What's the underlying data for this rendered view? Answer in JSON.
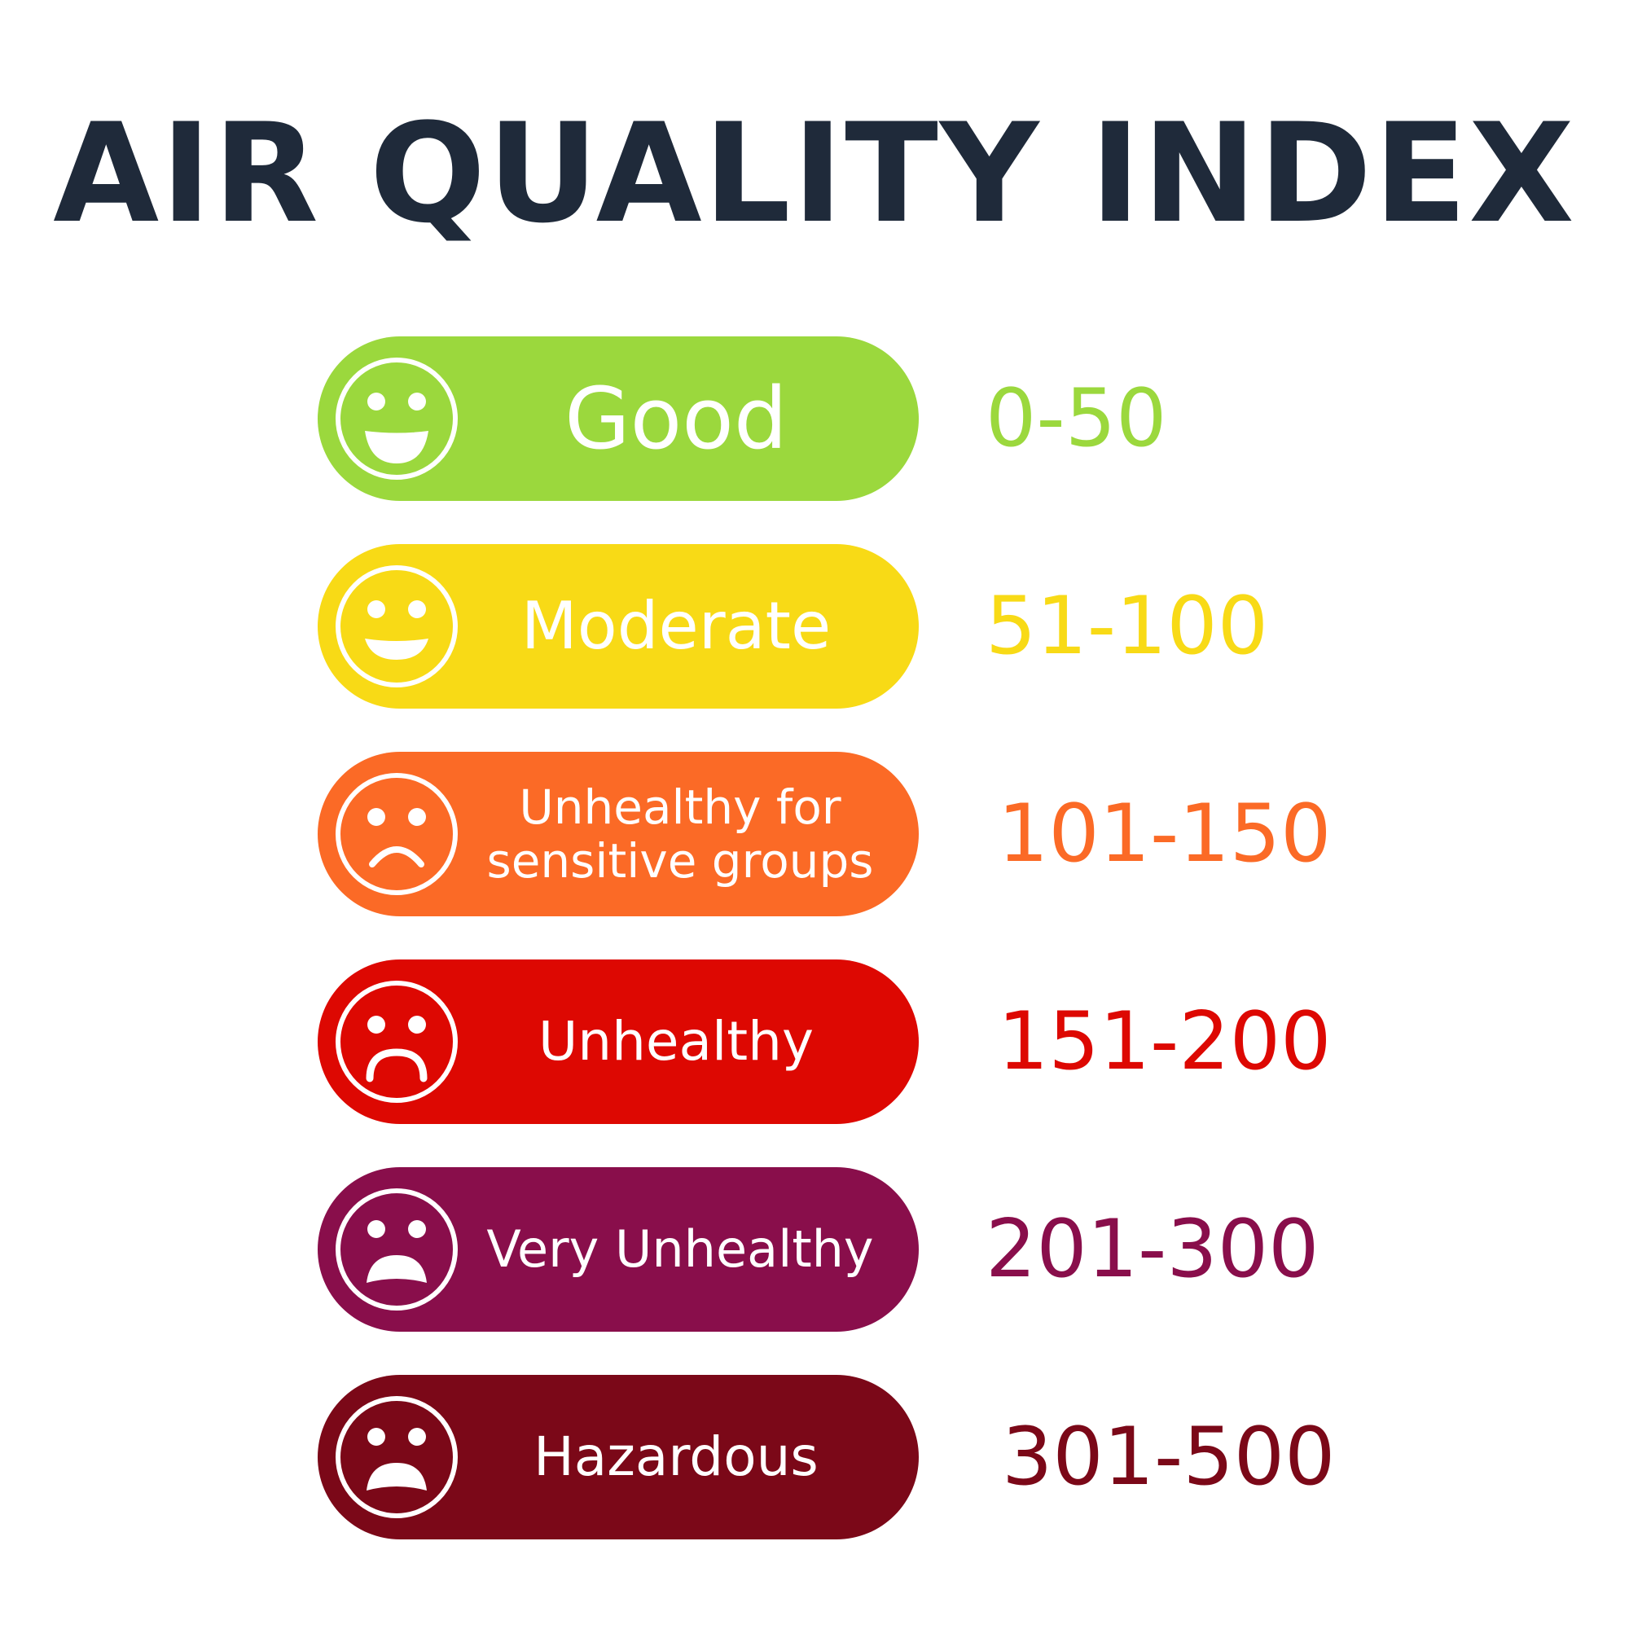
{
  "title": "AIR QUALITY INDEX",
  "levels": [
    {
      "label": "Good",
      "range": "0-50",
      "color": "#9bd83d",
      "face": "big-smile-icon"
    },
    {
      "label": "Moderate",
      "range": "51-100",
      "color": "#f8da16",
      "face": "smile-icon"
    },
    {
      "label": "Unhealthy for sensitive groups",
      "range": "101-150",
      "color": "#fb6a26",
      "face": "frown-icon"
    },
    {
      "label": "Unhealthy",
      "range": "151-200",
      "color": "#dd0802",
      "face": "sad-icon"
    },
    {
      "label": "Very Unhealthy",
      "range": "201-300",
      "color": "#890e4b",
      "face": "very-sad-icon"
    },
    {
      "label": "Hazardous",
      "range": "301-500",
      "color": "#7b0818",
      "face": "distressed-icon"
    }
  ]
}
